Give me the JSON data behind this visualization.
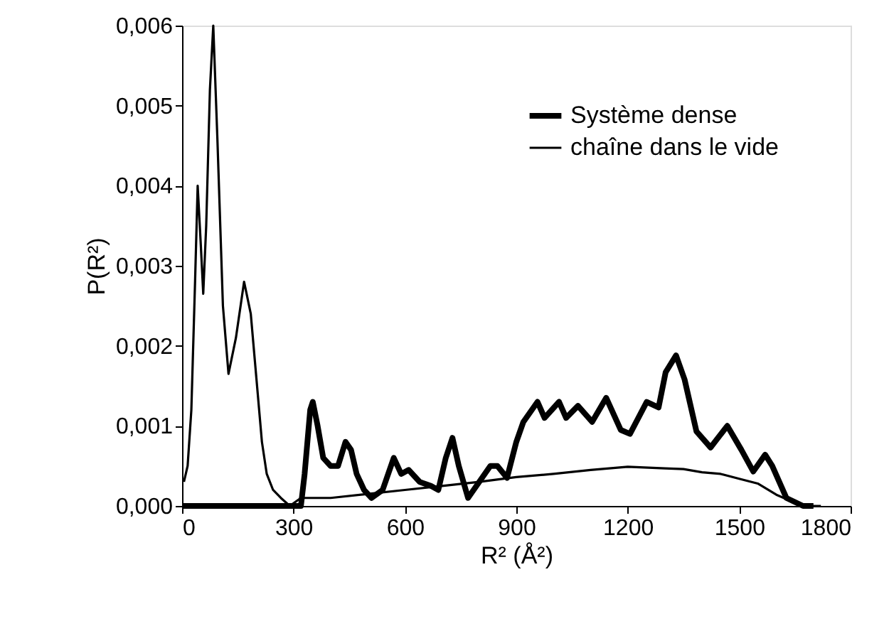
{
  "chart_data": {
    "type": "line",
    "xlabel": "R² (Å²)",
    "ylabel": "P(R²)",
    "xlim": [
      0,
      1800
    ],
    "xticks": [
      0,
      300,
      600,
      900,
      1200,
      1500,
      1800
    ],
    "ylim": [
      0,
      0.006
    ],
    "yticks": [
      {
        "value": 0,
        "label": "0,000"
      },
      {
        "value": 0.001,
        "label": "0,001"
      },
      {
        "value": 0.002,
        "label": "0,002"
      },
      {
        "value": 0.003,
        "label": "0,003"
      },
      {
        "value": 0.004,
        "label": "0,004"
      },
      {
        "value": 0.005,
        "label": "0,005"
      },
      {
        "value": 0.006,
        "label": "0,006"
      }
    ],
    "grid": false,
    "legend": "top right",
    "marker": "none",
    "line_style": "solid",
    "series": [
      {
        "name": "Système dense",
        "color": "#000000",
        "x": [
          0,
          100,
          200,
          300,
          320,
          330,
          345,
          352,
          365,
          380,
          400,
          420,
          440,
          455,
          470,
          490,
          510,
          540,
          570,
          590,
          610,
          640,
          670,
          690,
          710,
          728,
          745,
          770,
          800,
          830,
          849,
          875,
          900,
          919,
          957,
          976,
          1015,
          1034,
          1066,
          1104,
          1142,
          1181,
          1206,
          1251,
          1283,
          1302,
          1330,
          1353,
          1385,
          1423,
          1468,
          1506,
          1538,
          1570,
          1589,
          1627,
          1672,
          1700
        ],
        "values": [
          0,
          0,
          0,
          0,
          0,
          0.0004,
          0.0012,
          0.0013,
          0.001,
          0.0006,
          0.0005,
          0.0005,
          0.0008,
          0.0007,
          0.0004,
          0.0002,
          0.0001,
          0.0002,
          0.0006,
          0.0004,
          0.00045,
          0.0003,
          0.00025,
          0.0002,
          0.0006,
          0.00085,
          0.0005,
          0.0001,
          0.0003,
          0.0005,
          0.0005,
          0.00035,
          0.0008,
          0.00105,
          0.0013,
          0.0011,
          0.0013,
          0.0011,
          0.00125,
          0.00105,
          0.00135,
          0.00095,
          0.0009,
          0.0013,
          0.00123,
          0.00167,
          0.00188,
          0.00158,
          0.00093,
          0.00073,
          0.001,
          0.0007,
          0.00043,
          0.00064,
          0.0005,
          0.0001,
          0,
          0
        ]
      },
      {
        "name": "chaîne dans le vide",
        "color": "#000000",
        "x": [
          5,
          15,
          25,
          35,
          42,
          50,
          57,
          65,
          75,
          84,
          95,
          110,
          125,
          145,
          167,
          185,
          200,
          215,
          228,
          245,
          266,
          290,
          320,
          400,
          500,
          600,
          700,
          800,
          900,
          1000,
          1100,
          1200,
          1300,
          1350,
          1400,
          1450,
          1500,
          1550,
          1600,
          1640,
          1672,
          1720
        ],
        "values": [
          0.0003,
          0.0005,
          0.0012,
          0.0028,
          0.004,
          0.0033,
          0.00265,
          0.0035,
          0.0052,
          0.006,
          0.0046,
          0.0025,
          0.00165,
          0.0021,
          0.0028,
          0.0024,
          0.0016,
          0.0008,
          0.0004,
          0.0002,
          0.0001,
          0,
          0.0001,
          0.0001,
          0.00015,
          0.0002,
          0.00025,
          0.0003,
          0.00036,
          0.0004,
          0.00045,
          0.00049,
          0.00047,
          0.00046,
          0.00042,
          0.0004,
          0.00034,
          0.00028,
          0.00014,
          6e-05,
          0,
          0
        ]
      }
    ]
  }
}
